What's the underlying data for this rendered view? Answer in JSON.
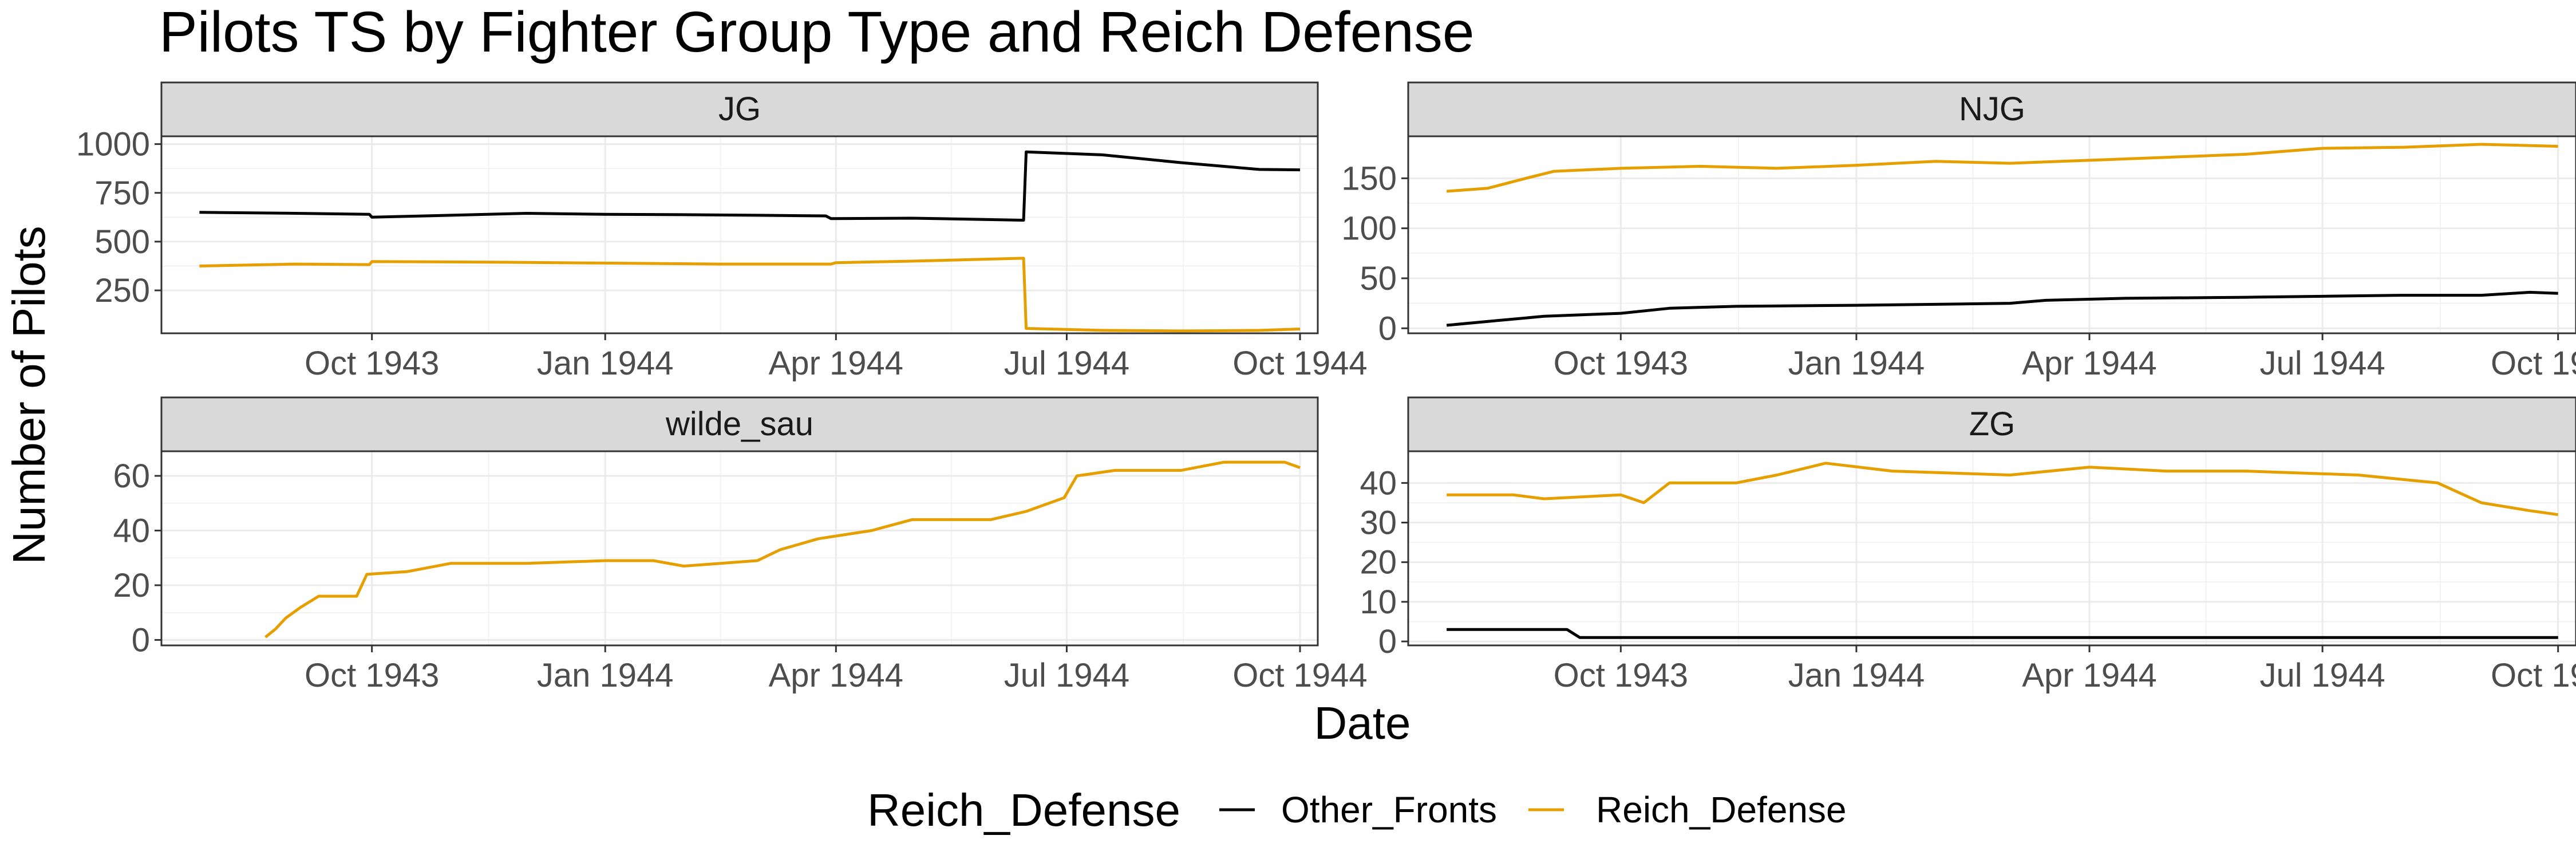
{
  "chart_data": {
    "type": "line",
    "title": "Pilots TS by Fighter Group Type and Reich Defense",
    "xlabel": "Date",
    "ylabel": "Number of Pilots",
    "x_tick_labels": [
      "Oct 1943",
      "Jan 1944",
      "Apr 1944",
      "Jul 1944",
      "Oct 1944"
    ],
    "x_tick_dates": [
      "1943-10-01",
      "1944-01-01",
      "1944-04-01",
      "1944-07-01",
      "1944-10-01"
    ],
    "grid": true,
    "legend": {
      "title": "Reich_Defense",
      "placement": "bottom",
      "entries": [
        {
          "label": "Other_Fronts",
          "color": "#000000"
        },
        {
          "label": "Reich_Defense",
          "color": "#E69F00"
        }
      ]
    },
    "panels": [
      {
        "strip": "JG",
        "xlim": [
          "1943-07-10",
          "1944-10-08"
        ],
        "ylim": [
          30,
          1040
        ],
        "y_ticks": [
          250,
          500,
          750,
          1000
        ],
        "x_ticks": [
          "1943-10-01",
          "1944-01-01",
          "1944-04-01",
          "1944-07-01",
          "1944-10-01"
        ],
        "series": [
          {
            "name": "Other_Fronts",
            "color": "#000000",
            "points": [
              [
                "1943-07-25",
                650
              ],
              [
                "1943-08-10",
                648
              ],
              [
                "1943-09-01",
                645
              ],
              [
                "1943-09-30",
                640
              ],
              [
                "1943-10-01",
                625
              ],
              [
                "1943-11-01",
                635
              ],
              [
                "1943-12-01",
                645
              ],
              [
                "1944-01-01",
                640
              ],
              [
                "1944-02-01",
                638
              ],
              [
                "1944-03-01",
                635
              ],
              [
                "1944-03-28",
                632
              ],
              [
                "1944-03-30",
                618
              ],
              [
                "1944-05-01",
                620
              ],
              [
                "1944-06-14",
                610
              ],
              [
                "1944-06-15",
                960
              ],
              [
                "1944-07-15",
                945
              ],
              [
                "1944-08-15",
                905
              ],
              [
                "1944-09-15",
                870
              ],
              [
                "1944-10-01",
                868
              ]
            ]
          },
          {
            "name": "Reich_Defense",
            "color": "#E69F00",
            "points": [
              [
                "1943-07-25",
                375
              ],
              [
                "1943-09-01",
                385
              ],
              [
                "1943-09-30",
                382
              ],
              [
                "1943-10-01",
                398
              ],
              [
                "1943-11-15",
                395
              ],
              [
                "1944-01-01",
                390
              ],
              [
                "1944-02-15",
                385
              ],
              [
                "1944-03-30",
                385
              ],
              [
                "1944-04-01",
                392
              ],
              [
                "1944-05-01",
                400
              ],
              [
                "1944-06-14",
                415
              ],
              [
                "1944-06-15",
                55
              ],
              [
                "1944-07-15",
                45
              ],
              [
                "1944-08-15",
                42
              ],
              [
                "1944-09-15",
                45
              ],
              [
                "1944-10-01",
                52
              ]
            ]
          }
        ]
      },
      {
        "strip": "NJG",
        "xlim": [
          "1943-07-10",
          "1944-10-08"
        ],
        "ylim": [
          -5,
          192
        ],
        "y_ticks": [
          0,
          50,
          100,
          150
        ],
        "x_ticks": [
          "1943-10-01",
          "1944-01-01",
          "1944-04-01",
          "1944-07-01",
          "1944-10-01"
        ],
        "series": [
          {
            "name": "Other_Fronts",
            "color": "#000000",
            "points": [
              [
                "1943-07-25",
                3
              ],
              [
                "1943-08-15",
                8
              ],
              [
                "1943-09-01",
                12
              ],
              [
                "1943-10-01",
                15
              ],
              [
                "1943-10-20",
                20
              ],
              [
                "1943-11-15",
                22
              ],
              [
                "1944-01-01",
                23
              ],
              [
                "1944-02-01",
                24
              ],
              [
                "1944-03-01",
                25
              ],
              [
                "1944-03-15",
                28
              ],
              [
                "1944-04-15",
                30
              ],
              [
                "1944-06-01",
                31
              ],
              [
                "1944-07-01",
                32
              ],
              [
                "1944-08-01",
                33
              ],
              [
                "1944-09-01",
                33
              ],
              [
                "1944-09-20",
                36
              ],
              [
                "1944-10-01",
                35
              ]
            ]
          },
          {
            "name": "Reich_Defense",
            "color": "#E69F00",
            "points": [
              [
                "1943-07-25",
                137
              ],
              [
                "1943-08-10",
                140
              ],
              [
                "1943-08-25",
                150
              ],
              [
                "1943-09-05",
                157
              ],
              [
                "1943-10-01",
                160
              ],
              [
                "1943-11-01",
                162
              ],
              [
                "1943-12-01",
                160
              ],
              [
                "1944-01-01",
                163
              ],
              [
                "1944-02-01",
                167
              ],
              [
                "1944-03-01",
                165
              ],
              [
                "1944-04-01",
                168
              ],
              [
                "1944-05-01",
                171
              ],
              [
                "1944-06-01",
                174
              ],
              [
                "1944-07-01",
                180
              ],
              [
                "1944-08-01",
                181
              ],
              [
                "1944-09-01",
                184
              ],
              [
                "1944-10-01",
                182
              ]
            ]
          }
        ]
      },
      {
        "strip": "wilde_sau",
        "xlim": [
          "1943-07-10",
          "1944-10-08"
        ],
        "ylim": [
          -2,
          69
        ],
        "y_ticks": [
          0,
          20,
          40,
          60
        ],
        "x_ticks": [
          "1943-10-01",
          "1944-01-01",
          "1944-04-01",
          "1944-07-01",
          "1944-10-01"
        ],
        "series": [
          {
            "name": "Reich_Defense",
            "color": "#E69F00",
            "points": [
              [
                "1943-08-20",
                1
              ],
              [
                "1943-08-24",
                4
              ],
              [
                "1943-08-28",
                8
              ],
              [
                "1943-09-03",
                12
              ],
              [
                "1943-09-10",
                16
              ],
              [
                "1943-09-25",
                16
              ],
              [
                "1943-09-29",
                24
              ],
              [
                "1943-10-15",
                25
              ],
              [
                "1943-11-01",
                28
              ],
              [
                "1943-12-01",
                28
              ],
              [
                "1944-01-01",
                29
              ],
              [
                "1944-01-20",
                29
              ],
              [
                "1944-02-01",
                27
              ],
              [
                "1944-03-01",
                29
              ],
              [
                "1944-03-10",
                33
              ],
              [
                "1944-03-25",
                37
              ],
              [
                "1944-04-15",
                40
              ],
              [
                "1944-05-01",
                44
              ],
              [
                "1944-06-01",
                44
              ],
              [
                "1944-06-15",
                47
              ],
              [
                "1944-06-30",
                52
              ],
              [
                "1944-07-05",
                60
              ],
              [
                "1944-07-20",
                62
              ],
              [
                "1944-08-15",
                62
              ],
              [
                "1944-09-01",
                65
              ],
              [
                "1944-09-25",
                65
              ],
              [
                "1944-10-01",
                63
              ]
            ]
          }
        ]
      },
      {
        "strip": "ZG",
        "xlim": [
          "1943-07-10",
          "1944-10-08"
        ],
        "ylim": [
          -1,
          48
        ],
        "y_ticks": [
          0,
          10,
          20,
          30,
          40
        ],
        "x_ticks": [
          "1943-10-01",
          "1944-01-01",
          "1944-04-01",
          "1944-07-01",
          "1944-10-01"
        ],
        "series": [
          {
            "name": "Other_Fronts",
            "color": "#000000",
            "points": [
              [
                "1943-07-25",
                3
              ],
              [
                "1943-09-10",
                3
              ],
              [
                "1943-09-15",
                1
              ],
              [
                "1944-10-01",
                1
              ]
            ]
          },
          {
            "name": "Reich_Defense",
            "color": "#E69F00",
            "points": [
              [
                "1943-07-25",
                37
              ],
              [
                "1943-08-20",
                37
              ],
              [
                "1943-09-01",
                36
              ],
              [
                "1943-10-01",
                37
              ],
              [
                "1943-10-10",
                35
              ],
              [
                "1943-10-20",
                40
              ],
              [
                "1943-11-15",
                40
              ],
              [
                "1943-12-01",
                42
              ],
              [
                "1943-12-20",
                45
              ],
              [
                "1944-01-15",
                43
              ],
              [
                "1944-03-01",
                42
              ],
              [
                "1944-04-01",
                44
              ],
              [
                "1944-05-01",
                43
              ],
              [
                "1944-06-01",
                43
              ],
              [
                "1944-07-15",
                42
              ],
              [
                "1944-08-15",
                40
              ],
              [
                "1944-09-01",
                35
              ],
              [
                "1944-09-20",
                33
              ],
              [
                "1944-10-01",
                32
              ]
            ]
          }
        ]
      }
    ]
  }
}
